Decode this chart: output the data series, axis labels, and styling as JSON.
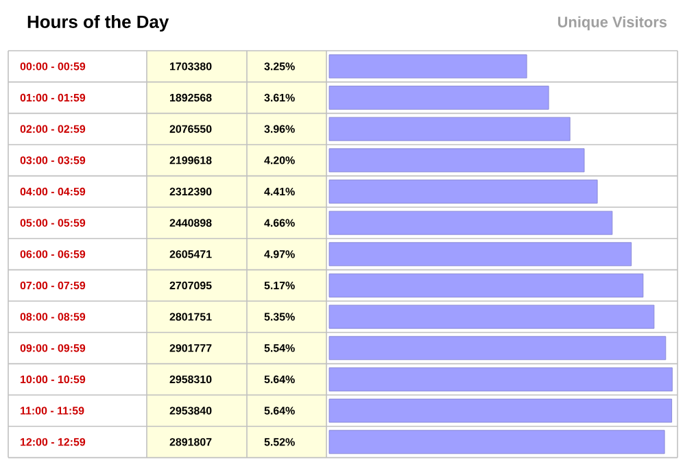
{
  "chart_data": {
    "type": "bar",
    "orientation": "horizontal",
    "title": "Hours of the Day",
    "xlabel": "Unique Visitors",
    "categories": [
      "00:00 - 00:59",
      "01:00 - 01:59",
      "02:00 - 02:59",
      "03:00 - 03:59",
      "04:00 - 04:59",
      "05:00 - 05:59",
      "06:00 - 06:59",
      "07:00 - 07:59",
      "08:00 - 08:59",
      "09:00 - 09:59",
      "10:00 - 10:59",
      "11:00 - 11:59",
      "12:00 - 12:59"
    ],
    "values": [
      1703380,
      1892568,
      2076550,
      2199618,
      2312390,
      2440898,
      2605471,
      2707095,
      2801751,
      2901777,
      2958310,
      2953840,
      2891807
    ],
    "color": "#9f9fff",
    "data_labels": true,
    "xlim": [
      0,
      2980000
    ],
    "annotations": [
      "3.25%",
      "3.61%",
      "3.96%",
      "4.20%",
      "4.41%",
      "4.66%",
      "4.97%",
      "5.17%",
      "5.35%",
      "5.54%",
      "5.64%",
      "5.64%",
      "5.52%"
    ]
  }
}
